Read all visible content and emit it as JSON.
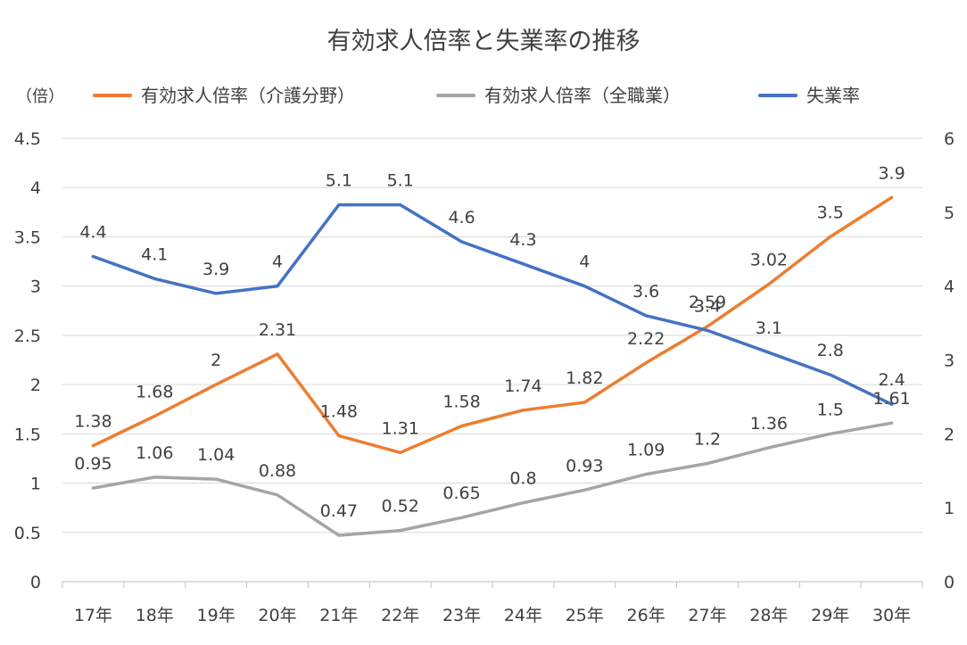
{
  "chart_data": {
    "type": "line",
    "title": "有効求人倍率と失業率の推移",
    "y_unit_label": "（倍）",
    "categories": [
      "17年",
      "18年",
      "19年",
      "20年",
      "21年",
      "22年",
      "23年",
      "24年",
      "25年",
      "26年",
      "27年",
      "28年",
      "29年",
      "30年"
    ],
    "ylim_left": [
      0,
      4.5
    ],
    "yticks_left": [
      "0",
      "0.5",
      "1",
      "1.5",
      "2",
      "2.5",
      "3",
      "3.5",
      "4",
      "4.5"
    ],
    "ylim_right": [
      0,
      6
    ],
    "yticks_right": [
      "0",
      "1",
      "2",
      "3",
      "4",
      "5",
      "6"
    ],
    "grid": true,
    "legend_position": "top",
    "series": [
      {
        "name": "有効求人倍率（介護分野）",
        "axis": "left",
        "color": "#ED7D31",
        "values": [
          1.38,
          1.68,
          2,
          2.31,
          1.48,
          1.31,
          1.58,
          1.74,
          1.82,
          2.22,
          2.59,
          3.02,
          3.5,
          3.9
        ],
        "labels": [
          "1.38",
          "1.68",
          "2",
          "2.31",
          "1.48",
          "1.31",
          "1.58",
          "1.74",
          "1.82",
          "2.22",
          "2.59",
          "3.02",
          "3.5",
          "3.9"
        ]
      },
      {
        "name": "有効求人倍率（全職業）",
        "axis": "left",
        "color": "#A5A5A5",
        "values": [
          0.95,
          1.06,
          1.04,
          0.88,
          0.47,
          0.52,
          0.65,
          0.8,
          0.93,
          1.09,
          1.2,
          1.36,
          1.5,
          1.61
        ],
        "labels": [
          "0.95",
          "1.06",
          "1.04",
          "0.88",
          "0.47",
          "0.52",
          "0.65",
          "0.8",
          "0.93",
          "1.09",
          "1.2",
          "1.36",
          "1.5",
          "1.61"
        ]
      },
      {
        "name": "失業率",
        "axis": "right",
        "color": "#4472C4",
        "values": [
          4.4,
          4.1,
          3.9,
          4,
          5.1,
          5.1,
          4.6,
          4.3,
          4,
          3.6,
          3.4,
          3.1,
          2.8,
          2.4
        ],
        "labels": [
          "4.4",
          "4.1",
          "3.9",
          "4",
          "5.1",
          "5.1",
          "4.6",
          "4.3",
          "4",
          "3.6",
          "3.4",
          "3.1",
          "2.8",
          "2.4"
        ]
      }
    ]
  }
}
